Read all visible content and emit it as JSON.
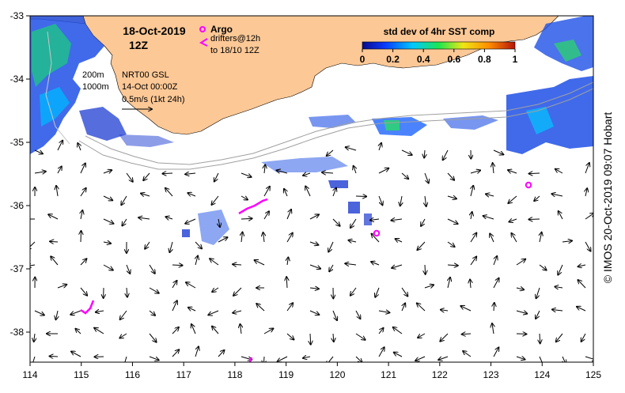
{
  "header": {
    "date": "18-Oct-2019",
    "hour": "12Z"
  },
  "legend": {
    "argo_label": "Argo",
    "drifters_label": "drifters@12h",
    "drifters_sub": "to 18/10 12Z",
    "argo_color": "#ff00ff",
    "drifter_color": "#ff00ff"
  },
  "contours": {
    "label_200": "200m",
    "label_1000": "1000m",
    "nrt_label": "NRT00 GSL",
    "nrt_date": "14-Oct 00:00Z",
    "scale_label": "0.5m/s (1kt 24h)"
  },
  "colorbar": {
    "title": "std dev of 4hr SST comp",
    "ticks": [
      "0",
      "0.2",
      "0.4",
      "0.6",
      "0.8",
      "1"
    ],
    "stops": [
      "#0a0a8c",
      "#0a3cff",
      "#00c8ff",
      "#1ee650",
      "#f0e614",
      "#ff8c00",
      "#b4140a"
    ]
  },
  "axes": {
    "x_ticks": [
      "114",
      "115",
      "116",
      "117",
      "118",
      "119",
      "120",
      "121",
      "122",
      "123",
      "124",
      "125"
    ],
    "y_ticks": [
      "-33",
      "-34",
      "-35",
      "-36",
      "-37",
      "-38"
    ]
  },
  "colors": {
    "land": "#fcc896",
    "ocean": "#ffffff",
    "argo": "#ff00ff"
  },
  "credit": "© IMOS 20-Oct-2019 09:07 Hobart"
}
